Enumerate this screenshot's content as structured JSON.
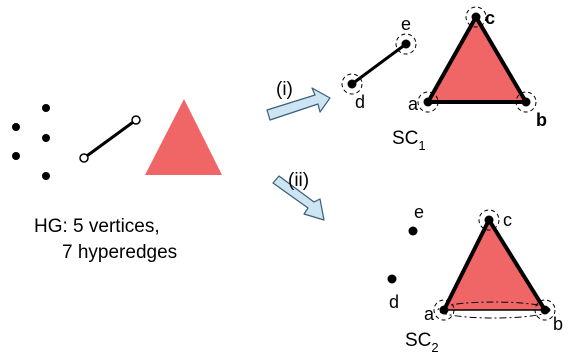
{
  "caption": {
    "line1": "HG: 5 vertices,",
    "line2": "7 hyperedges"
  },
  "arrows": {
    "upper_label": "(i)",
    "lower_label": "(ii)"
  },
  "complex_1": {
    "name": "SC",
    "subscript": "1",
    "vertex_labels": {
      "a": "a",
      "b": "b",
      "c": "c",
      "d": "d",
      "e": "e"
    }
  },
  "complex_2": {
    "name": "SC",
    "subscript": "2",
    "vertex_labels": {
      "a": "a",
      "b": "b",
      "c": "c",
      "d": "d",
      "e": "e"
    }
  },
  "colors": {
    "triangle_fill": "#f06666",
    "arrow_fill": "#cde4f2",
    "arrow_stroke": "#3a5f7a",
    "ink": "#000000"
  }
}
